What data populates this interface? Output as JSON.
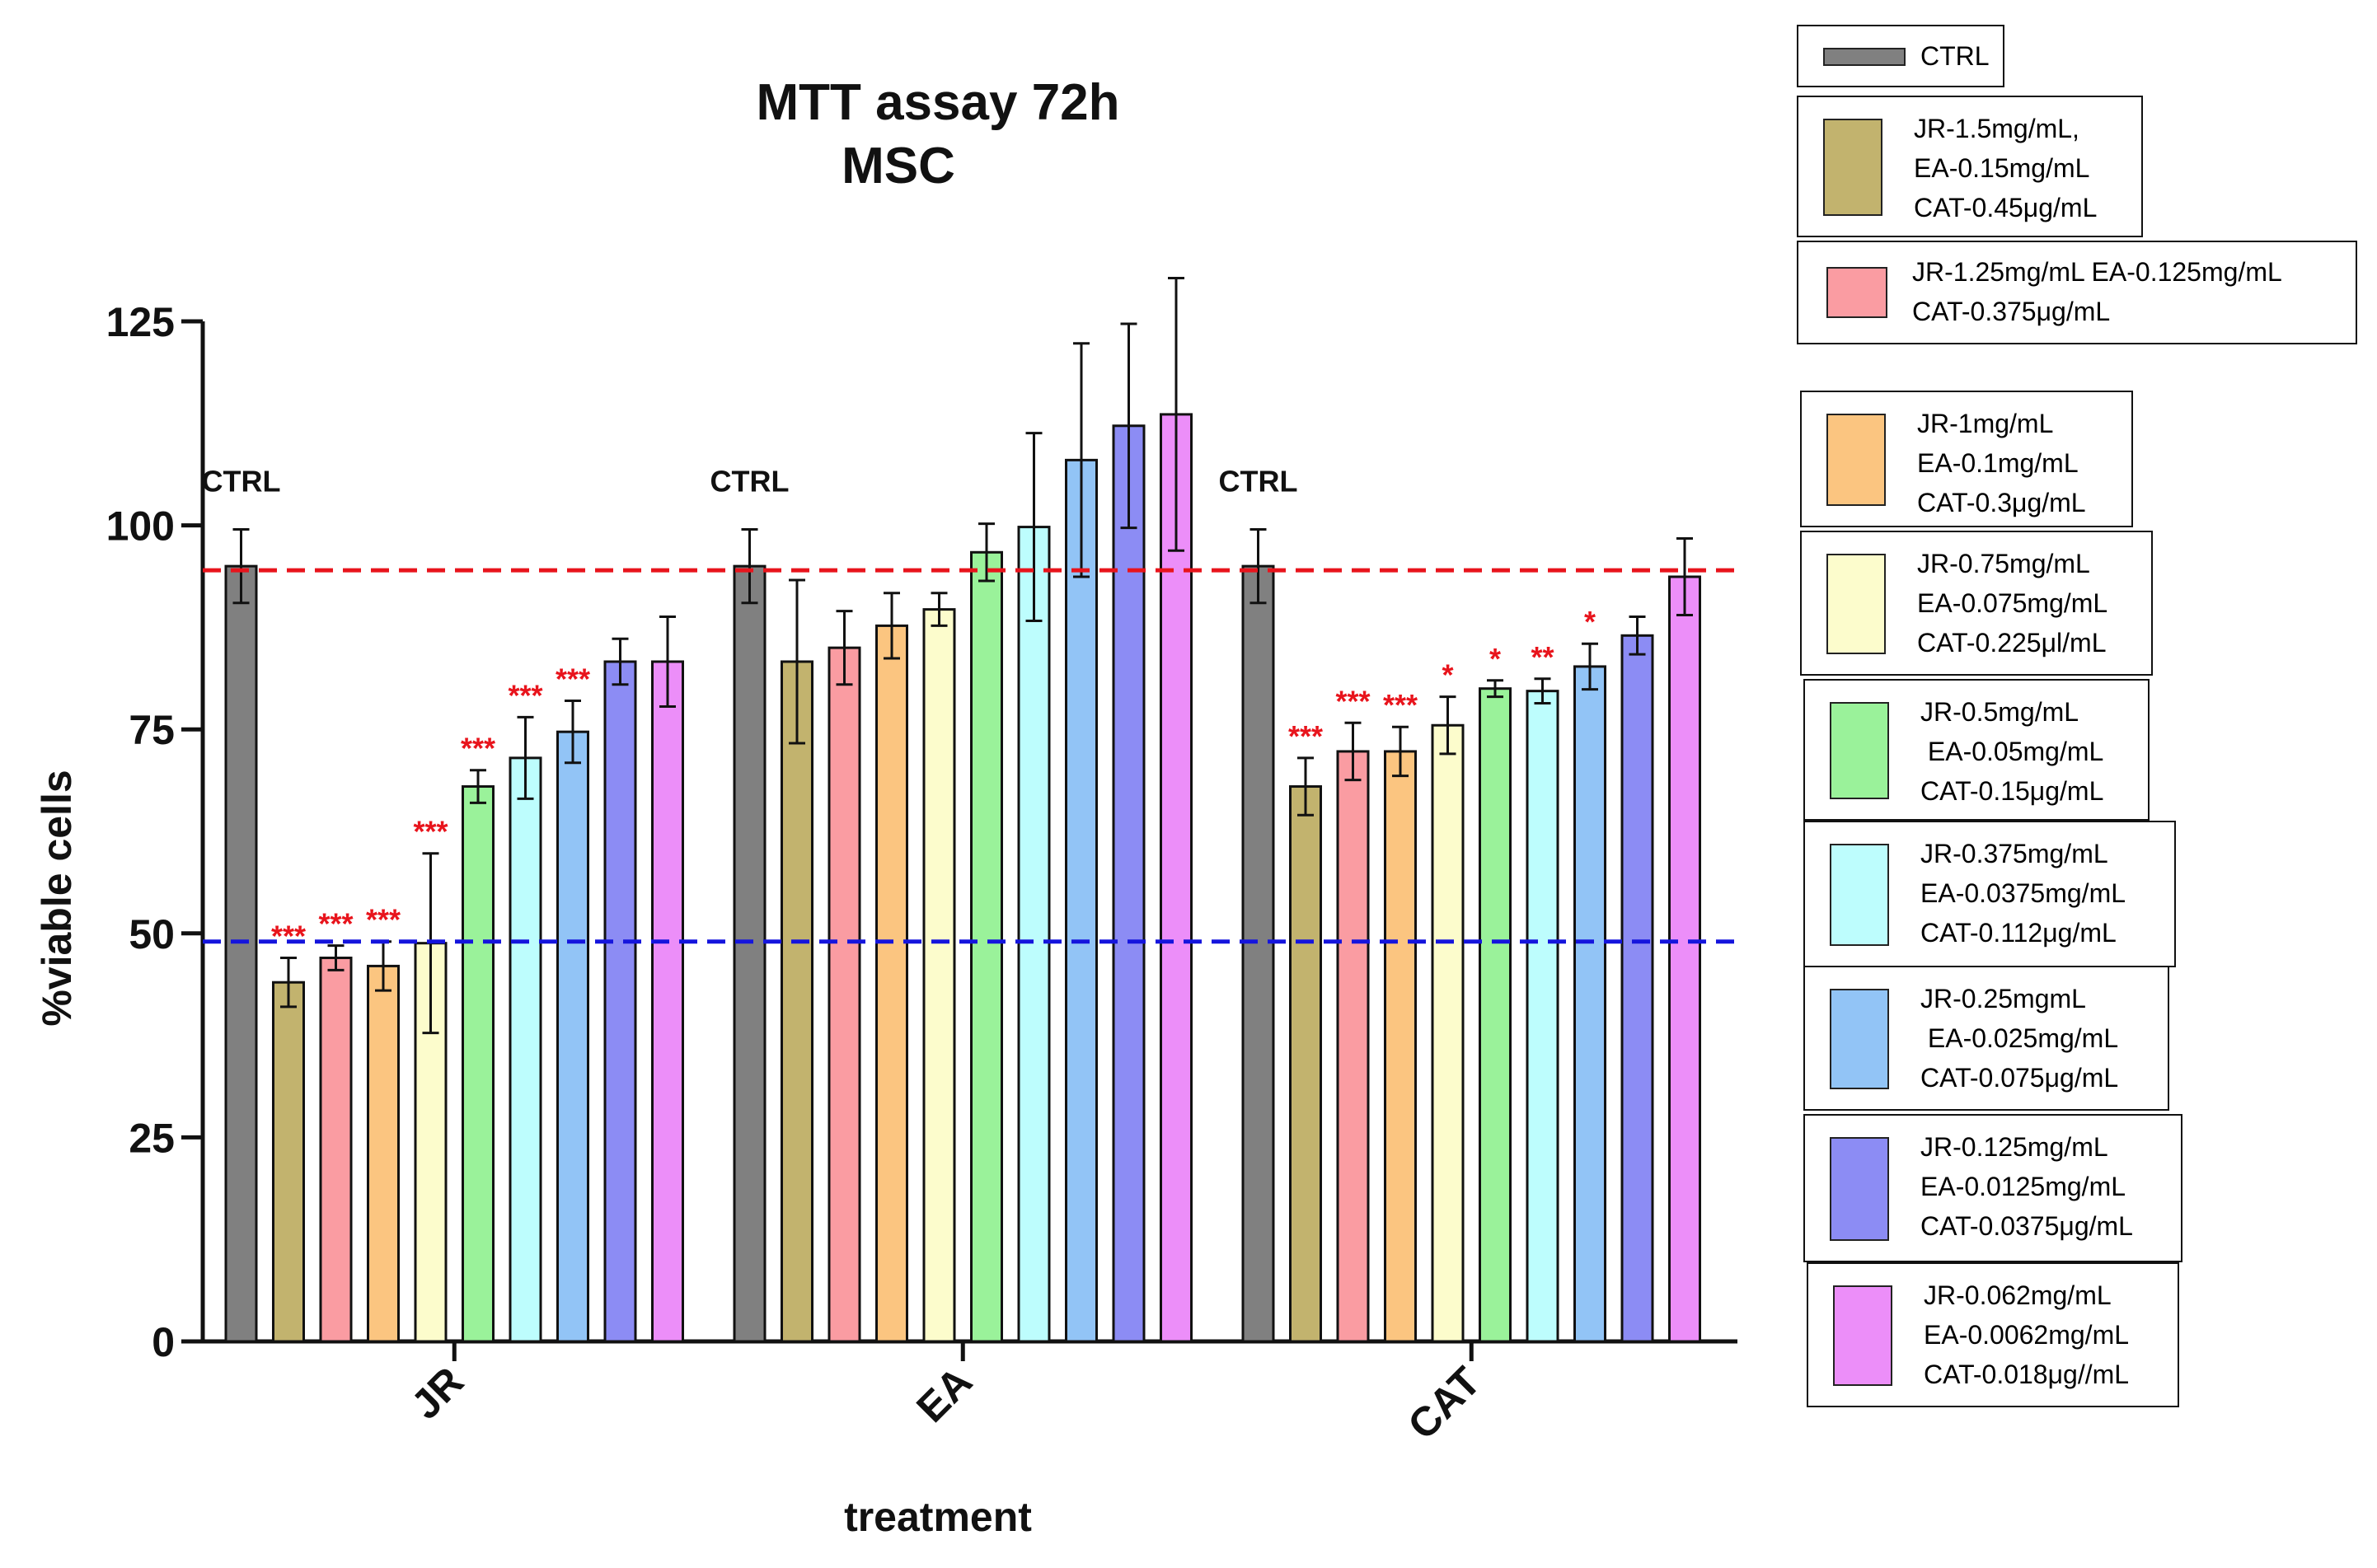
{
  "chart_data": {
    "type": "bar",
    "title": [
      "MTT assay 72h",
      "MSC"
    ],
    "xlabel": "treatment",
    "ylabel": "%viable cells",
    "ylim": [
      0,
      125
    ],
    "yticks": [
      0,
      25,
      50,
      75,
      100,
      125
    ],
    "categories": [
      "JR",
      "EA",
      "CAT"
    ],
    "group_labels": [
      "CTRL",
      "CTRL",
      "CTRL"
    ],
    "reference_lines": [
      {
        "value": 94.5,
        "color": "#e8141c",
        "style": "dashed"
      },
      {
        "value": 49,
        "color": "#1515dd",
        "style": "dashed"
      }
    ],
    "series": [
      {
        "name": "CTRL",
        "color": "#808080",
        "values": [
          95,
          95,
          95
        ],
        "errors": [
          4.5,
          4.5,
          4.5
        ],
        "significance": [
          "",
          "",
          ""
        ]
      },
      {
        "name": "JR-1.5mg/mL,\nEA-0.15mg/mL\nCAT-0.45μg/mL",
        "color": "#c2b36e",
        "values": [
          44,
          83.3,
          68
        ],
        "errors": [
          3,
          10,
          3.5
        ],
        "significance": [
          "***",
          "",
          "***"
        ]
      },
      {
        "name": "JR-1.25mg/mL EA-0.125mg/mL\nCAT-0.375μg/mL",
        "color": "#fa9ca2",
        "values": [
          47,
          85,
          72.3
        ],
        "errors": [
          1.5,
          4.5,
          3.5
        ],
        "significance": [
          "***",
          "",
          "***"
        ]
      },
      {
        "name": "JR-1mg/mL\nEA-0.1mg/mL\nCAT-0.3μg/mL",
        "color": "#fbc580",
        "values": [
          46,
          87.7,
          72.3
        ],
        "errors": [
          3,
          4,
          3
        ],
        "significance": [
          "***",
          "",
          "***"
        ]
      },
      {
        "name": "JR-0.75mg/mL\nEA-0.075mg/mL\nCAT-0.225μl/mL",
        "color": "#fcfccc",
        "values": [
          48.8,
          89.7,
          75.5
        ],
        "errors": [
          11,
          2,
          3.5
        ],
        "significance": [
          "***",
          "",
          "*"
        ]
      },
      {
        "name": "JR-0.5mg/mL\n EA-0.05mg/mL\nCAT-0.15μg/mL",
        "color": "#9af29a",
        "values": [
          68,
          96.7,
          80
        ],
        "errors": [
          2,
          3.5,
          1
        ],
        "significance": [
          "***",
          "",
          "*"
        ]
      },
      {
        "name": "JR-0.375mg/mL\nEA-0.0375mg/mL\nCAT-0.112μg/mL",
        "color": "#bdfdfd",
        "values": [
          71.5,
          99.8,
          79.7
        ],
        "errors": [
          5,
          11.5,
          1.5
        ],
        "significance": [
          "***",
          "",
          "**"
        ]
      },
      {
        "name": "JR-0.25mgmL\n EA-0.025mg/mL\nCAT-0.075μg/mL",
        "color": "#92c4f6",
        "values": [
          74.7,
          108,
          82.7
        ],
        "errors": [
          3.8,
          14.3,
          2.8
        ],
        "significance": [
          "***",
          "",
          "*"
        ]
      },
      {
        "name": "JR-0.125mg/mL\nEA-0.0125mg/mL\nCAT-0.0375μg/mL",
        "color": "#8c8cf4",
        "values": [
          83.3,
          112.2,
          86.5
        ],
        "errors": [
          2.8,
          12.5,
          2.3
        ],
        "significance": [
          "",
          "",
          ""
        ]
      },
      {
        "name": "JR-0.062mg/mL\nEA-0.0062mg/mL\nCAT-0.018μg//mL",
        "color": "#ec8ef9",
        "values": [
          83.3,
          113.6,
          93.7
        ],
        "errors": [
          5.5,
          16.7,
          4.7
        ],
        "significance": [
          "",
          "",
          ""
        ]
      }
    ]
  }
}
